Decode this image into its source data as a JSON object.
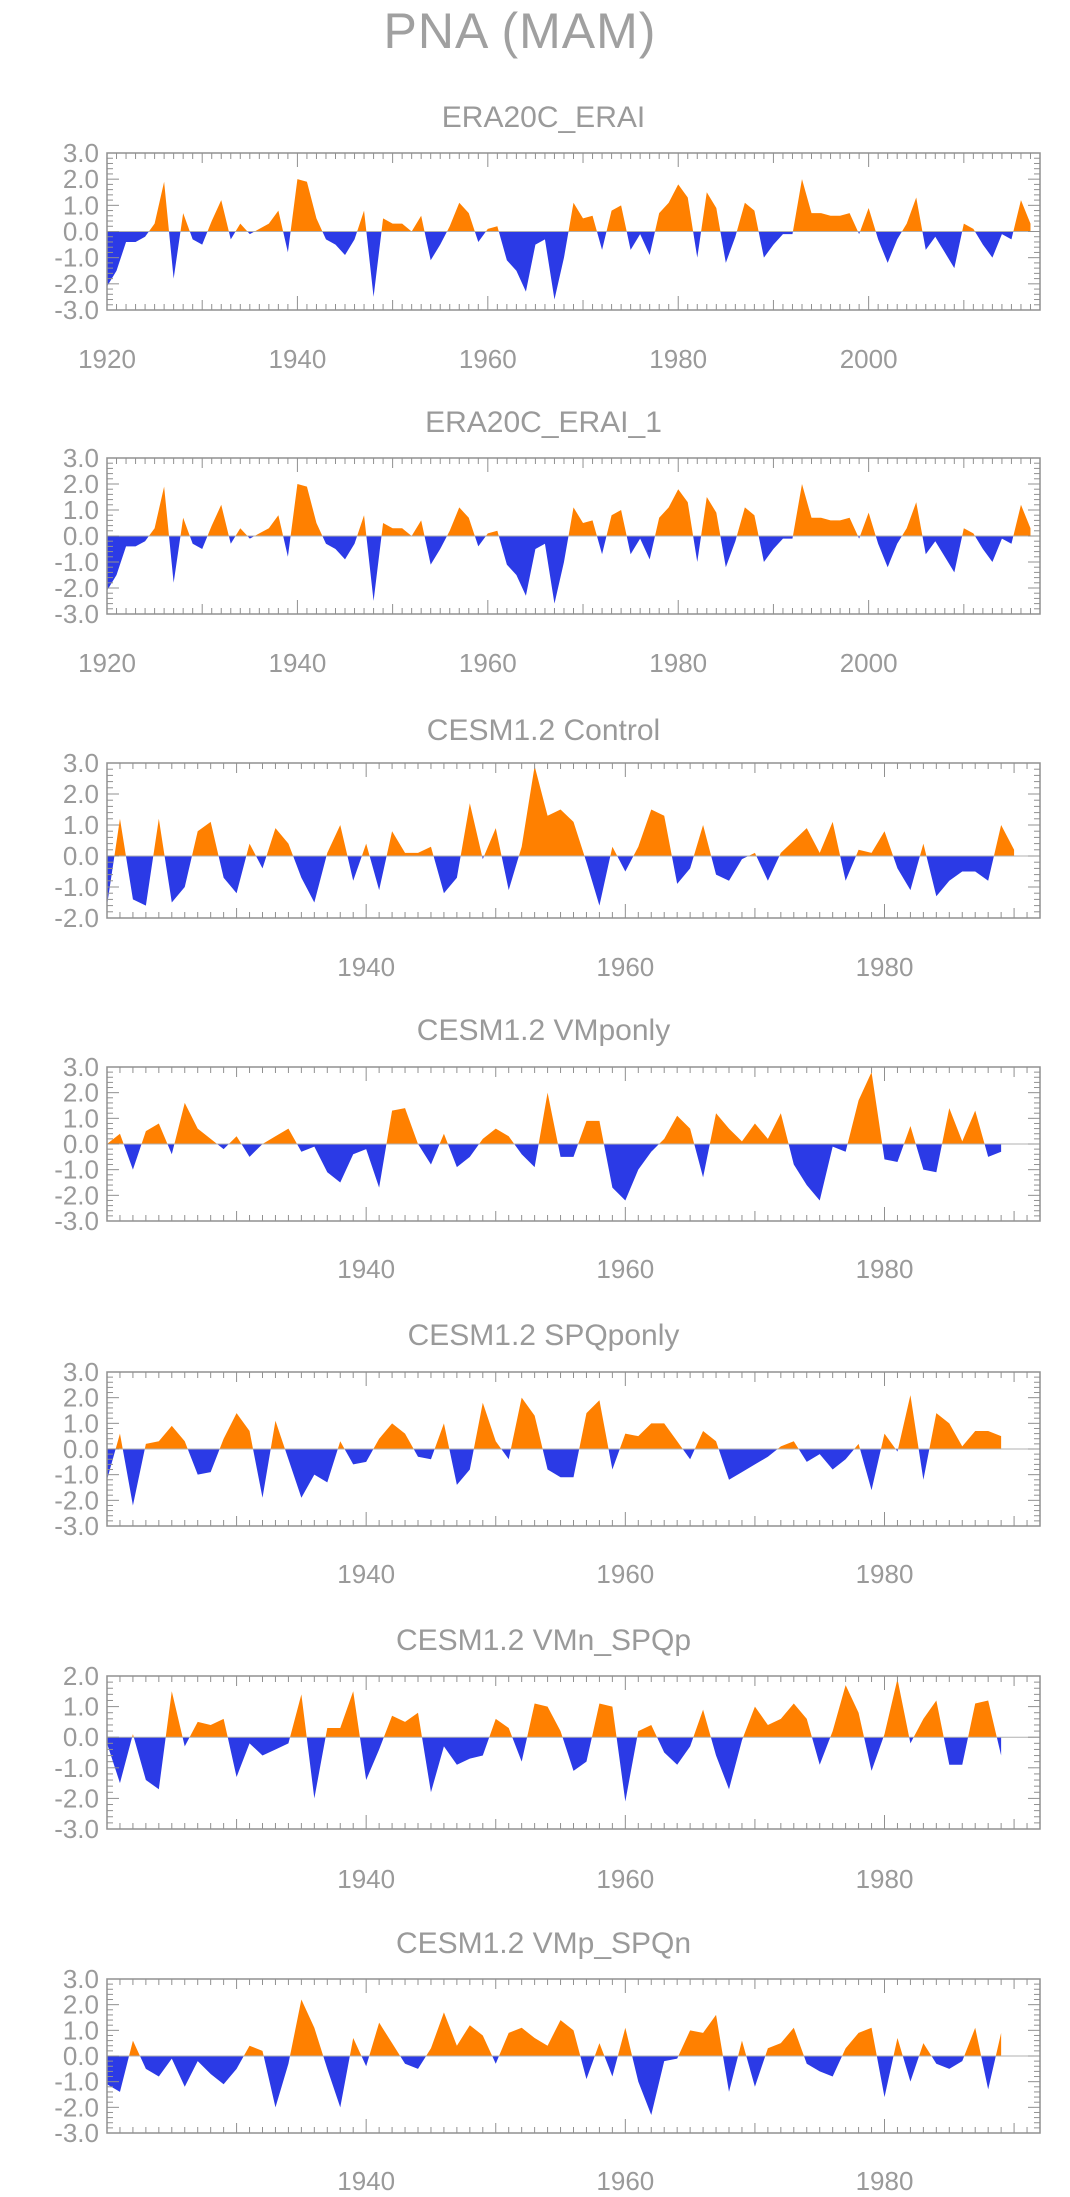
{
  "figure": {
    "title": "PNA (MAM)"
  },
  "colors": {
    "positive": "#ff8000",
    "negative": "#2b3ae6",
    "axis": "#909090",
    "text": "#9a9a9a"
  },
  "chart_data": [
    {
      "type": "area",
      "title": "ERA20C_ERAI",
      "x_start": 1920,
      "xlim": [
        1920,
        2018
      ],
      "ylim": [
        -3.0,
        3.0
      ],
      "yticks": [
        "3.0",
        "2.0",
        "1.0",
        "0.0",
        "-1.0",
        "-2.0",
        "-3.0"
      ],
      "xticks": [
        "1920",
        "1940",
        "1960",
        "1980",
        "2000"
      ],
      "values": [
        -2.1,
        -1.5,
        -0.4,
        -0.4,
        -0.2,
        0.3,
        1.9,
        -1.8,
        0.7,
        -0.3,
        -0.5,
        0.4,
        1.2,
        -0.3,
        0.3,
        -0.1,
        0.1,
        0.3,
        0.8,
        -0.8,
        2.0,
        1.9,
        0.5,
        -0.3,
        -0.5,
        -0.9,
        -0.3,
        0.8,
        -2.5,
        0.5,
        0.3,
        0.3,
        0.0,
        0.6,
        -1.1,
        -0.5,
        0.2,
        1.1,
        0.7,
        -0.4,
        0.1,
        0.2,
        -1.1,
        -1.5,
        -2.3,
        -0.5,
        -0.3,
        -2.6,
        -1.0,
        1.1,
        0.5,
        0.6,
        -0.7,
        0.8,
        1.0,
        -0.7,
        -0.1,
        -0.9,
        0.7,
        1.1,
        1.8,
        1.3,
        -1.0,
        1.5,
        0.9,
        -1.2,
        -0.2,
        1.1,
        0.8,
        -1.0,
        -0.5,
        -0.1,
        -0.1,
        2.0,
        0.7,
        0.7,
        0.6,
        0.6,
        0.7,
        -0.1,
        0.9,
        -0.3,
        -1.2,
        -0.3,
        0.3,
        1.3,
        -0.7,
        -0.2,
        -0.8,
        -1.4,
        0.3,
        0.1,
        -0.5,
        -1.0,
        -0.1,
        -0.3,
        1.2,
        0.3
      ]
    },
    {
      "type": "area",
      "title": "ERA20C_ERAI_1",
      "x_start": 1920,
      "xlim": [
        1920,
        2018
      ],
      "ylim": [
        -3.0,
        3.0
      ],
      "yticks": [
        "3.0",
        "2.0",
        "1.0",
        "0.0",
        "-1.0",
        "-2.0",
        "-3.0"
      ],
      "xticks": [
        "1920",
        "1940",
        "1960",
        "1980",
        "2000"
      ],
      "values": [
        -2.1,
        -1.5,
        -0.4,
        -0.4,
        -0.2,
        0.3,
        1.9,
        -1.8,
        0.7,
        -0.3,
        -0.5,
        0.4,
        1.2,
        -0.3,
        0.3,
        -0.1,
        0.1,
        0.3,
        0.8,
        -0.8,
        2.0,
        1.9,
        0.5,
        -0.3,
        -0.5,
        -0.9,
        -0.3,
        0.8,
        -2.5,
        0.5,
        0.3,
        0.3,
        0.0,
        0.6,
        -1.1,
        -0.5,
        0.2,
        1.1,
        0.7,
        -0.4,
        0.1,
        0.2,
        -1.1,
        -1.5,
        -2.3,
        -0.5,
        -0.3,
        -2.6,
        -1.0,
        1.1,
        0.5,
        0.6,
        -0.7,
        0.8,
        1.0,
        -0.7,
        -0.1,
        -0.9,
        0.7,
        1.1,
        1.8,
        1.3,
        -1.0,
        1.5,
        0.9,
        -1.2,
        -0.2,
        1.1,
        0.8,
        -1.0,
        -0.5,
        -0.1,
        -0.1,
        2.0,
        0.7,
        0.7,
        0.6,
        0.6,
        0.7,
        -0.1,
        0.9,
        -0.3,
        -1.2,
        -0.3,
        0.3,
        1.3,
        -0.7,
        -0.2,
        -0.8,
        -1.4,
        0.3,
        0.1,
        -0.5,
        -1.0,
        -0.1,
        -0.3,
        1.2,
        0.3
      ]
    },
    {
      "type": "area",
      "title": "CESM1.2 Control",
      "x_start": 1920,
      "xlim": [
        1920,
        1992
      ],
      "ylim": [
        -2.0,
        3.0
      ],
      "yticks": [
        "3.0",
        "2.0",
        "1.0",
        "0.0",
        "-1.0",
        "-2.0"
      ],
      "xticks": [
        "1940",
        "1960",
        "1980"
      ],
      "values": [
        -1.6,
        1.2,
        -1.4,
        -1.6,
        1.2,
        -1.5,
        -1.0,
        0.8,
        1.1,
        -0.7,
        -1.2,
        0.4,
        -0.4,
        0.9,
        0.4,
        -0.7,
        -1.5,
        0.1,
        1.0,
        -0.8,
        0.4,
        -1.1,
        0.8,
        0.1,
        0.1,
        0.3,
        -1.2,
        -0.7,
        1.7,
        -0.1,
        0.9,
        -1.1,
        0.3,
        2.9,
        1.3,
        1.5,
        1.1,
        -0.2,
        -1.6,
        0.3,
        -0.5,
        0.3,
        1.5,
        1.3,
        -0.9,
        -0.4,
        1.0,
        -0.6,
        -0.8,
        -0.1,
        0.1,
        -0.8,
        0.1,
        0.5,
        0.9,
        0.1,
        1.1,
        -0.8,
        0.2,
        0.1,
        0.8,
        -0.4,
        -1.1,
        0.4,
        -1.3,
        -0.8,
        -0.5,
        -0.5,
        -0.8,
        1.0,
        0.2
      ]
    },
    {
      "type": "area",
      "title": "CESM1.2 VMponly",
      "x_start": 1920,
      "xlim": [
        1920,
        1992
      ],
      "ylim": [
        -3.0,
        3.0
      ],
      "yticks": [
        "3.0",
        "2.0",
        "1.0",
        "0.0",
        "-1.0",
        "-2.0",
        "-3.0"
      ],
      "xticks": [
        "1940",
        "1960",
        "1980"
      ],
      "values": [
        0.0,
        0.4,
        -1.0,
        0.5,
        0.8,
        -0.4,
        1.6,
        0.6,
        0.2,
        -0.2,
        0.3,
        -0.5,
        0.0,
        0.3,
        0.6,
        -0.3,
        -0.1,
        -1.1,
        -1.5,
        -0.4,
        -0.2,
        -1.7,
        1.3,
        1.4,
        0.0,
        -0.8,
        0.4,
        -0.9,
        -0.5,
        0.2,
        0.6,
        0.3,
        -0.4,
        -0.9,
        2.0,
        -0.5,
        -0.5,
        0.9,
        0.9,
        -1.7,
        -2.2,
        -1.0,
        -0.3,
        0.2,
        1.1,
        0.6,
        -1.3,
        1.2,
        0.6,
        0.1,
        0.8,
        0.2,
        1.2,
        -0.8,
        -1.6,
        -2.2,
        -0.1,
        -0.3,
        1.7,
        2.8,
        -0.6,
        -0.7,
        0.7,
        -1.0,
        -1.1,
        1.4,
        0.1,
        1.3,
        -0.5,
        -0.3
      ]
    },
    {
      "type": "area",
      "title": "CESM1.2 SPQponly",
      "x_start": 1920,
      "xlim": [
        1920,
        1992
      ],
      "ylim": [
        -3.0,
        3.0
      ],
      "yticks": [
        "3.0",
        "2.0",
        "1.0",
        "0.0",
        "-1.0",
        "-2.0",
        "-3.0"
      ],
      "xticks": [
        "1940",
        "1960",
        "1980"
      ],
      "values": [
        -1.2,
        0.6,
        -2.2,
        0.2,
        0.3,
        0.9,
        0.3,
        -1.0,
        -0.9,
        0.4,
        1.4,
        0.7,
        -1.9,
        1.1,
        -0.4,
        -1.9,
        -1.0,
        -1.3,
        0.3,
        -0.6,
        -0.5,
        0.4,
        1.0,
        0.6,
        -0.3,
        -0.4,
        1.0,
        -1.4,
        -0.8,
        1.8,
        0.3,
        -0.4,
        2.0,
        1.3,
        -0.8,
        -1.1,
        -1.1,
        1.4,
        1.9,
        -0.8,
        0.6,
        0.5,
        1.0,
        1.0,
        0.3,
        -0.4,
        0.7,
        0.3,
        -1.2,
        -0.9,
        -0.6,
        -0.3,
        0.1,
        0.3,
        -0.5,
        -0.2,
        -0.8,
        -0.4,
        0.2,
        -1.6,
        0.6,
        -0.1,
        2.1,
        -1.2,
        1.4,
        1.0,
        0.1,
        0.7,
        0.7,
        0.5
      ]
    },
    {
      "type": "area",
      "title": "CESM1.2 VMn_SPQp",
      "x_start": 1920,
      "xlim": [
        1920,
        1992
      ],
      "ylim": [
        -3.0,
        2.0
      ],
      "yticks": [
        "2.0",
        "1.0",
        "0.0",
        "-1.0",
        "-2.0",
        "-3.0"
      ],
      "xticks": [
        "1940",
        "1960",
        "1980"
      ],
      "values": [
        -0.2,
        -1.5,
        0.1,
        -1.4,
        -1.7,
        1.5,
        -0.3,
        0.5,
        0.4,
        0.6,
        -1.3,
        -0.2,
        -0.6,
        -0.4,
        -0.2,
        1.4,
        -2.0,
        0.3,
        0.3,
        1.5,
        -1.4,
        -0.4,
        0.7,
        0.5,
        0.8,
        -1.8,
        -0.3,
        -0.9,
        -0.7,
        -0.6,
        0.6,
        0.3,
        -0.8,
        1.1,
        1.0,
        0.2,
        -1.1,
        -0.8,
        1.1,
        1.0,
        -2.1,
        0.2,
        0.4,
        -0.5,
        -0.9,
        -0.3,
        0.9,
        -0.6,
        -1.7,
        -0.1,
        1.0,
        0.4,
        0.6,
        1.1,
        0.6,
        -0.9,
        0.2,
        1.7,
        0.8,
        -1.1,
        0.1,
        1.9,
        -0.2,
        0.6,
        1.2,
        -0.9,
        -0.9,
        1.1,
        1.2,
        -0.6
      ]
    },
    {
      "type": "area",
      "title": "CESM1.2 VMp_SPQn",
      "x_start": 1920,
      "xlim": [
        1920,
        1992
      ],
      "ylim": [
        -3.0,
        3.0
      ],
      "yticks": [
        "3.0",
        "2.0",
        "1.0",
        "0.0",
        "-1.0",
        "-2.0",
        "-3.0"
      ],
      "xticks": [
        "1940",
        "1960",
        "1980"
      ],
      "values": [
        -1.1,
        -1.4,
        0.6,
        -0.5,
        -0.8,
        -0.1,
        -1.2,
        -0.2,
        -0.7,
        -1.1,
        -0.5,
        0.4,
        0.2,
        -2.0,
        -0.3,
        2.2,
        1.1,
        -0.5,
        -2.0,
        0.7,
        -0.4,
        1.3,
        0.5,
        -0.3,
        -0.5,
        0.3,
        1.7,
        0.4,
        1.2,
        0.8,
        -0.3,
        0.9,
        1.1,
        0.7,
        0.4,
        1.4,
        1.0,
        -0.9,
        0.5,
        -0.8,
        1.1,
        -1.0,
        -2.3,
        -0.2,
        -0.1,
        1.0,
        0.9,
        1.6,
        -1.4,
        0.6,
        -1.2,
        0.3,
        0.5,
        1.1,
        -0.3,
        -0.6,
        -0.8,
        0.3,
        0.9,
        1.1,
        -1.6,
        0.7,
        -1.0,
        0.5,
        -0.3,
        -0.5,
        -0.2,
        1.1,
        -1.3,
        0.9
      ]
    }
  ]
}
